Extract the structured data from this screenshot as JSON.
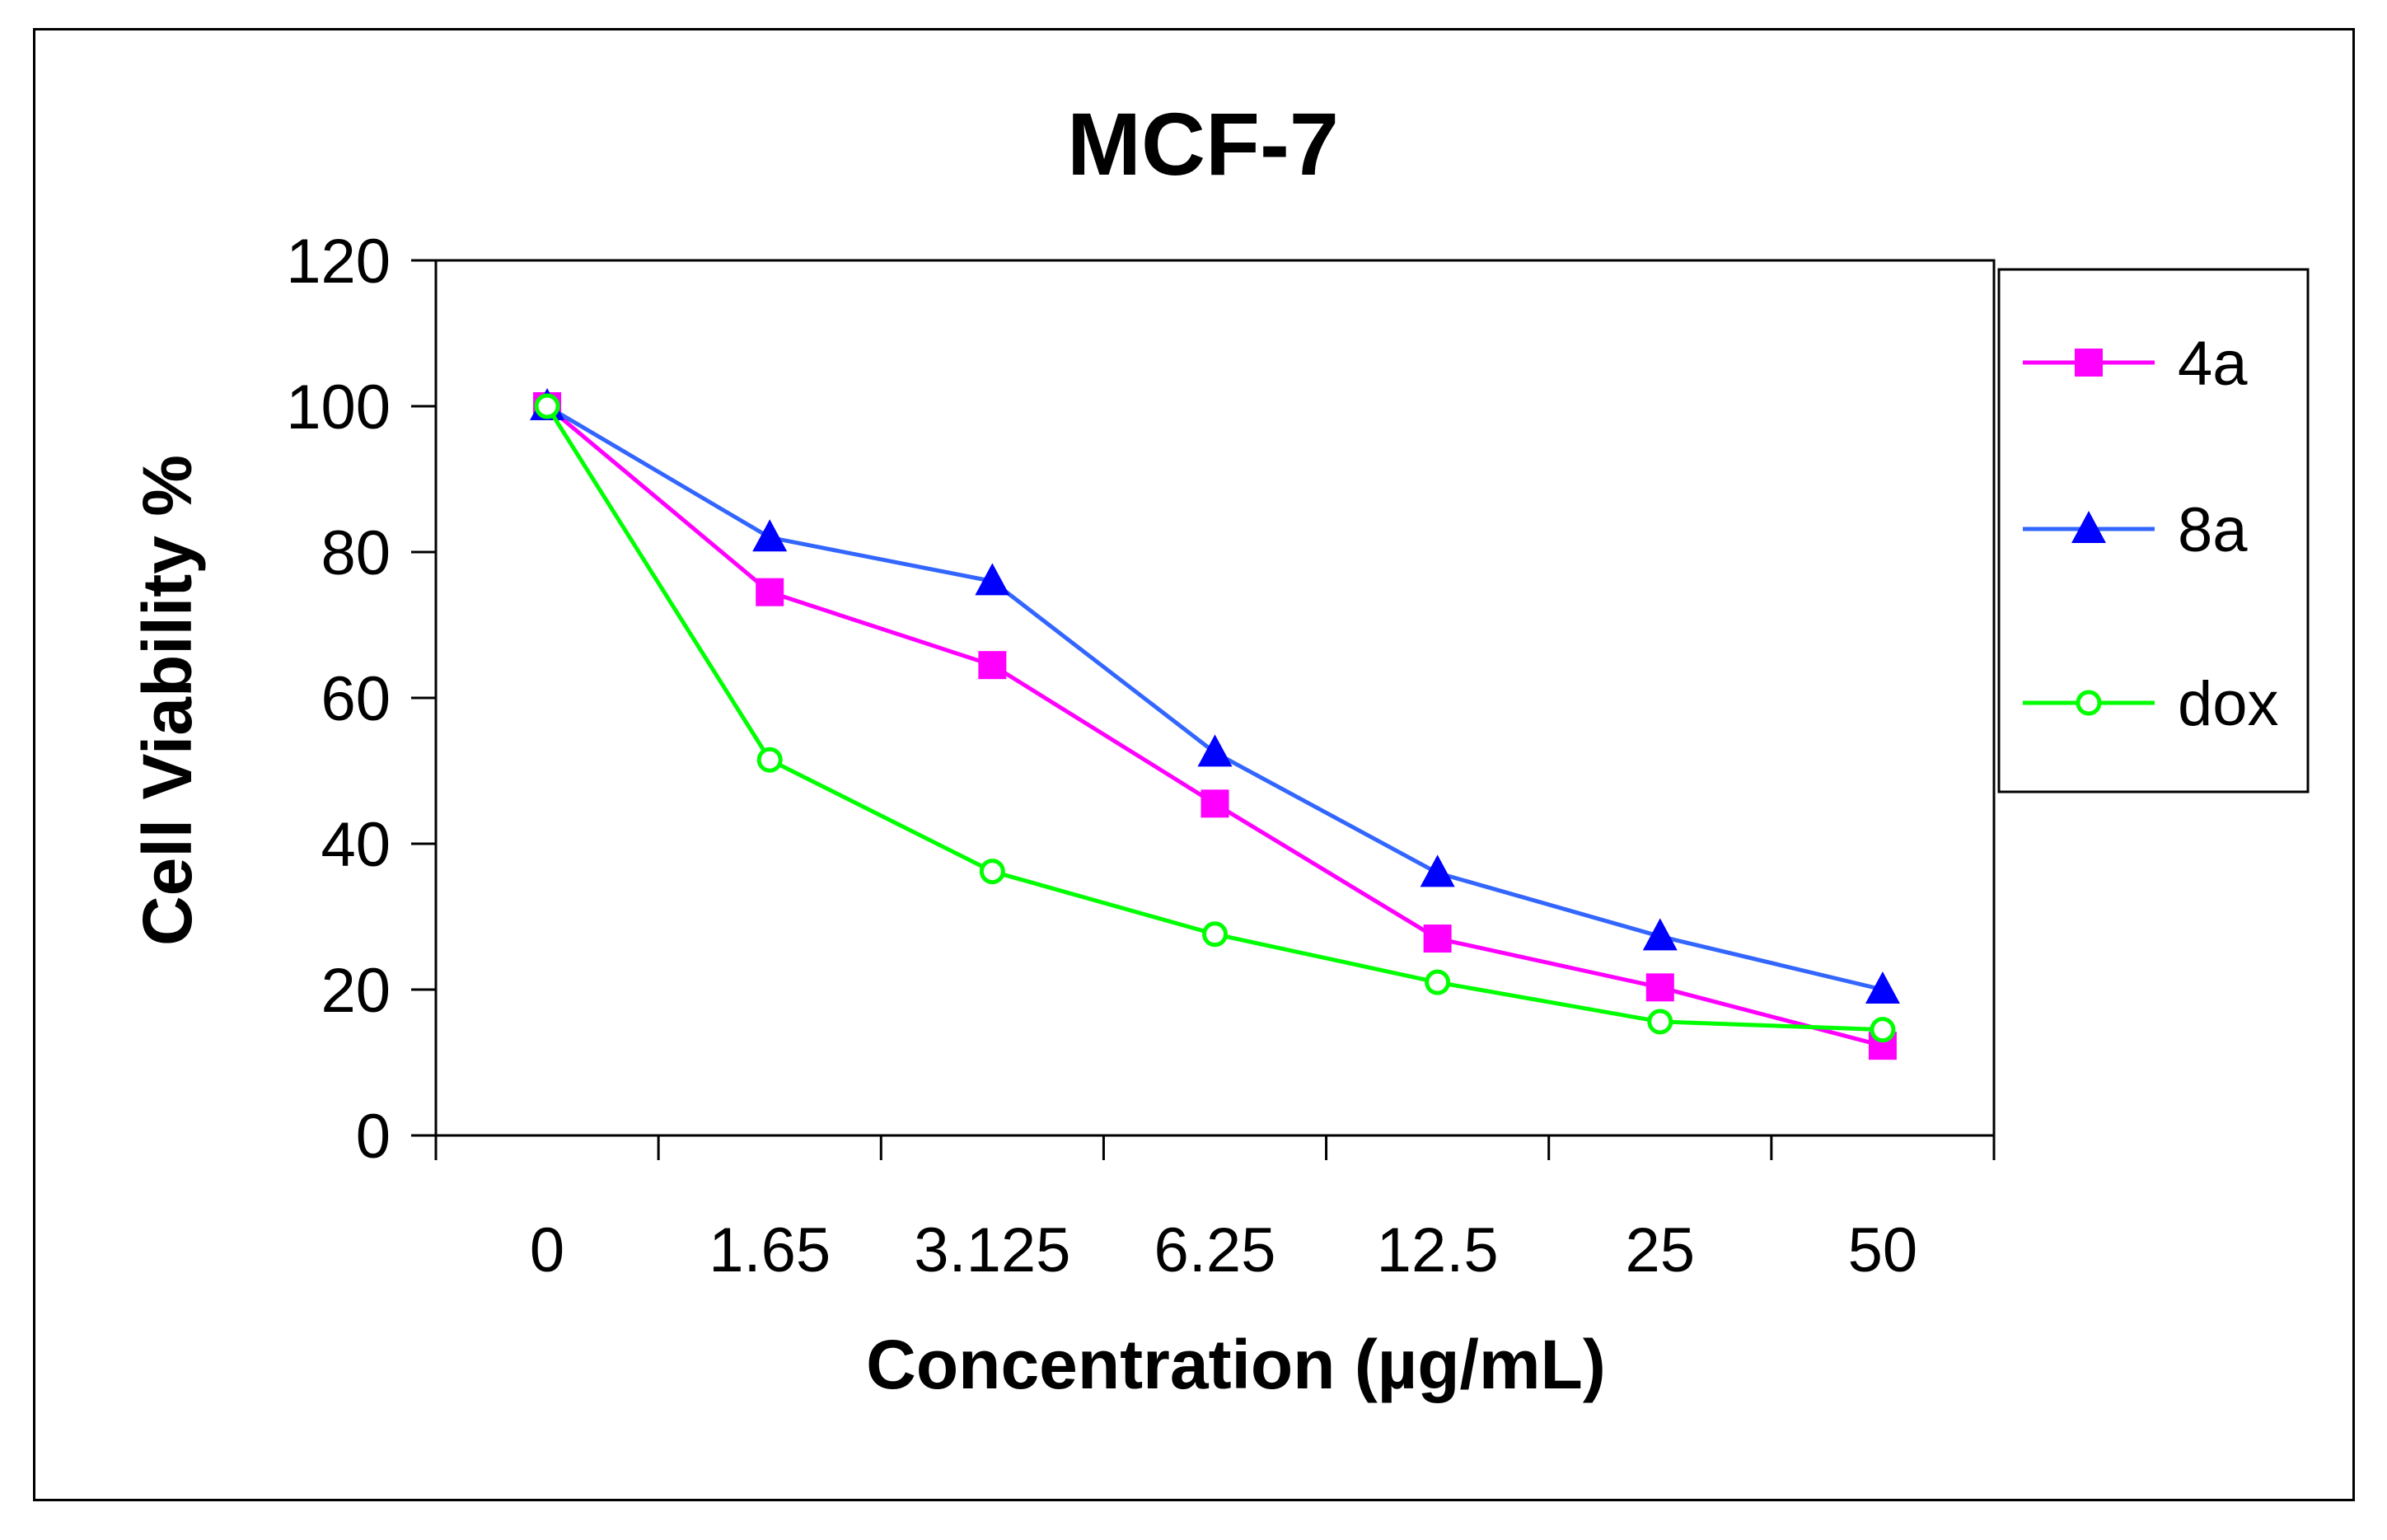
{
  "chart_data": {
    "type": "line",
    "title": "MCF-7",
    "xlabel": "Concentration (µg/mL)",
    "ylabel": "Cell Viability %",
    "categories": [
      "0",
      "1.65",
      "3.125",
      "6.25",
      "12.5",
      "25",
      "50"
    ],
    "ylim": [
      0,
      120
    ],
    "yticks": [
      0,
      20,
      40,
      60,
      80,
      100,
      120
    ],
    "grid": false,
    "legend_position": "right",
    "series": [
      {
        "name": "4a",
        "color": "#FF00FF",
        "marker": "square",
        "values": [
          100,
          74.5,
          64.5,
          45.5,
          27,
          20.3,
          12.3
        ]
      },
      {
        "name": "8a",
        "color": "#3366FF",
        "marker_color": "#0000FF",
        "marker": "triangle",
        "values": [
          100,
          82,
          76,
          52.5,
          36,
          27.3,
          20
        ]
      },
      {
        "name": "dox",
        "color": "#00FF00",
        "marker": "circle-open",
        "values": [
          100,
          51.5,
          36.2,
          27.6,
          21,
          15.6,
          14.5
        ]
      }
    ]
  }
}
